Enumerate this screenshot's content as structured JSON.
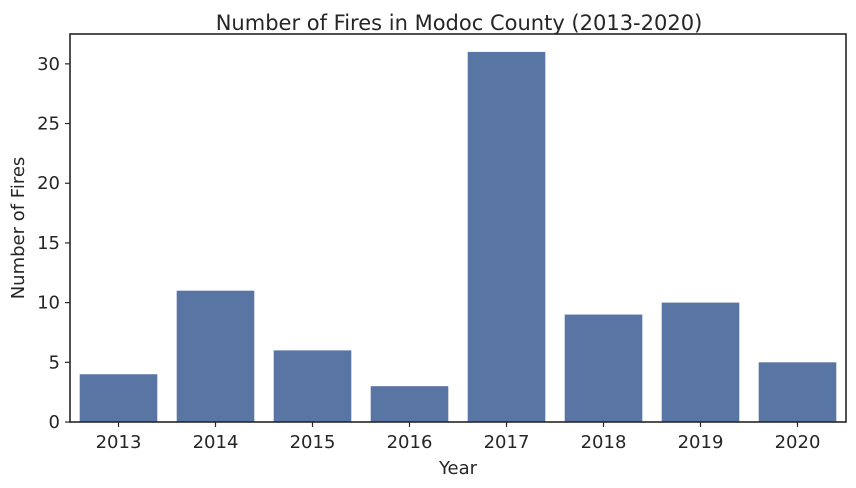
{
  "chart_data": {
    "type": "bar",
    "title": "Number of Fires in Modoc County (2013-2020)",
    "xlabel": "Year",
    "ylabel": "Number of Fires",
    "categories": [
      "2013",
      "2014",
      "2015",
      "2016",
      "2017",
      "2018",
      "2019",
      "2020"
    ],
    "values": [
      4,
      11,
      6,
      3,
      31,
      9,
      10,
      5
    ],
    "ylim": [
      0,
      32.5
    ],
    "yticks": [
      0,
      5,
      10,
      15,
      20,
      25,
      30
    ],
    "grid": false,
    "bar_color": "#5975a4"
  }
}
